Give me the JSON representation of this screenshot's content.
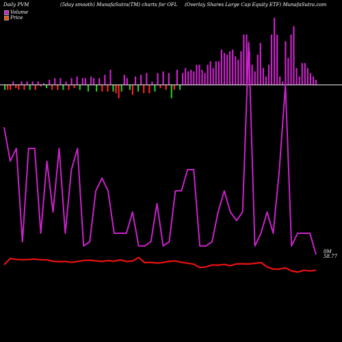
{
  "header": {
    "label_left": "Daily PVM",
    "label_mid": "(5day smooth) MunafaSutra(TM) charts for OFL",
    "label_right": "(Overlay Shares Large   Cap Equity ETF) MunafaSutra.com"
  },
  "legend": [
    {
      "name": "Volume",
      "color": "#cc22cc"
    },
    {
      "name": "Price",
      "color": "#ee5500"
    }
  ],
  "colors": {
    "volume_line": "#cc22cc",
    "price_line": "#ee1111",
    "bar_up": "#cc22cc",
    "bar_down": "#ff2222",
    "bar_green": "#22cc22",
    "baseline": "#ffffff"
  },
  "chart_data": {
    "type": "line",
    "title": "Daily PVM (5day smooth) MunafaSutra(TM) charts for OFL",
    "series": [
      {
        "name": "Volume",
        "values": [
          30,
          22,
          25,
          3,
          25,
          25,
          5,
          22,
          10,
          25,
          5,
          20,
          25,
          2,
          3,
          15,
          18,
          15,
          5,
          5,
          5,
          10,
          2,
          2,
          3,
          12,
          2,
          3,
          15,
          15,
          20,
          20,
          2,
          2,
          3,
          10,
          15,
          10,
          8,
          10,
          50,
          2,
          5,
          10,
          5,
          20,
          40,
          2,
          5,
          5,
          5,
          0
        ]
      },
      {
        "name": "Price",
        "values": [
          0,
          4.5,
          3.9,
          3.6,
          3.8,
          4.1,
          3.6,
          3.6,
          2.5,
          2.2,
          2.4,
          1.7,
          2.4,
          3.1,
          3.3,
          2.8,
          2.4,
          3,
          2.6,
          3.5,
          2.4,
          2.7,
          5.3,
          1.5,
          1.7,
          1.2,
          1.6,
          2.5,
          2.7,
          1.8,
          1.1,
          0.4,
          -2.1,
          -1.6,
          -0.2,
          -0.3,
          0.2,
          -0.7,
          0.6,
          0.7,
          0.5,
          1,
          1.6,
          -1.6,
          -3.2,
          -3.2,
          -2.3,
          -4.5,
          -5.4,
          -4.1,
          -4.5,
          -4.1
        ]
      }
    ],
    "bars": [
      -3,
      -3,
      -3,
      2,
      -2,
      -3,
      2,
      -3,
      2,
      -3,
      2,
      -3,
      2,
      -1,
      1,
      -2,
      3,
      -3,
      4,
      -3,
      4,
      -3,
      2,
      -3,
      4,
      -2,
      5,
      -3,
      4,
      4,
      -4,
      5,
      4,
      -4,
      4,
      -4,
      6,
      -4,
      9,
      -4,
      -5,
      -8,
      -4,
      6,
      4,
      -3,
      -6,
      5,
      -4,
      6,
      -5,
      7,
      -5,
      2,
      -4,
      7,
      -2,
      8,
      -3,
      7,
      -8,
      -3,
      9,
      -3,
      7,
      10,
      8,
      9,
      8,
      12,
      12,
      9,
      7,
      12,
      14,
      10,
      14,
      14,
      21,
      19,
      18,
      20,
      21,
      17,
      15,
      20,
      30,
      30,
      20,
      12,
      8,
      18,
      25,
      10,
      5,
      12,
      30,
      40,
      30,
      5,
      2,
      26,
      16,
      30,
      35,
      10,
      5,
      13,
      13,
      10,
      7,
      5,
      3
    ],
    "annotations": [
      "0M",
      "58.77"
    ]
  }
}
